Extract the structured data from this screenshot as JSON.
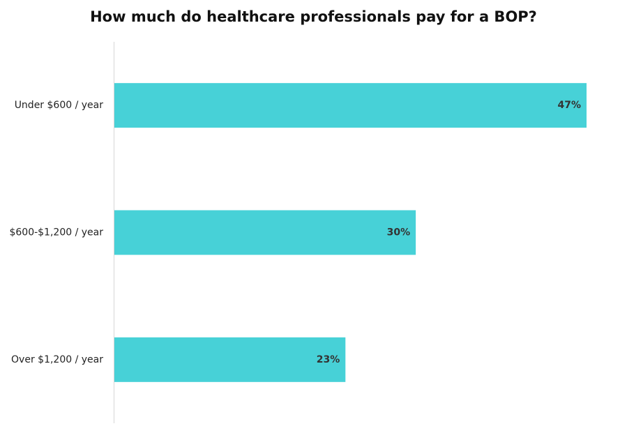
{
  "chart_data": {
    "type": "bar",
    "orientation": "horizontal",
    "title": "How much do healthcare professionals pay for a BOP?",
    "xlabel": "",
    "ylabel": "",
    "categories": [
      "Under $600 / year",
      "$600-$1,200 / year",
      "Over $1,200 / year"
    ],
    "values": [
      47,
      30,
      23
    ],
    "value_labels": [
      "47%",
      "30%",
      "23%"
    ],
    "xlim": [
      0,
      47
    ],
    "grid": false,
    "legend": "none",
    "bar_color": "#47d1d7"
  }
}
